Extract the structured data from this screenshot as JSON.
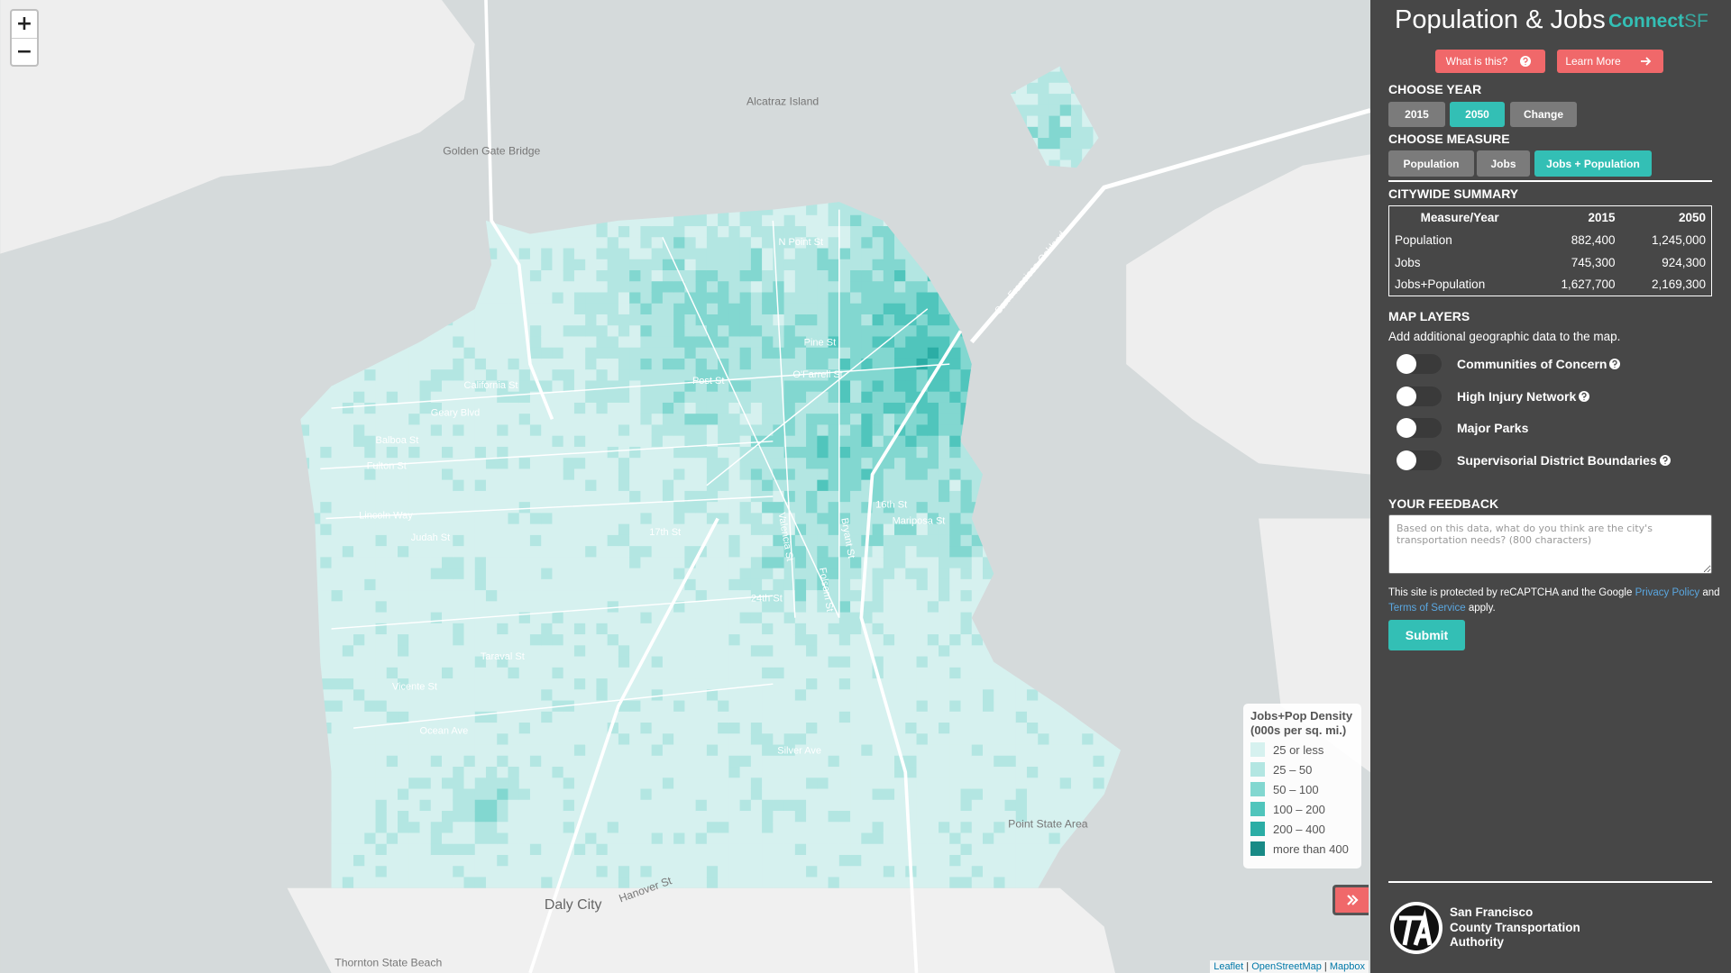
{
  "header": {
    "title": "Population & Jobs",
    "brand_a": "Connect",
    "brand_b": "SF",
    "what_is_this": "What is this?",
    "learn_more": "Learn More"
  },
  "map": {
    "zoom_in": "+",
    "zoom_out": "−",
    "labels": [
      "Alcatraz Island",
      "Golden Gate Bridge",
      "N Point St",
      "California St",
      "Geary Blvd",
      "Balboa St",
      "Fulton St",
      "Lincoln Way",
      "Judah St",
      "Taraval St",
      "Vicente St",
      "Ocean Ave",
      "Silver Ave",
      "Post St",
      "O'Farrell St",
      "Pine St",
      "16th St",
      "17th St",
      "24th St",
      "Mariposa St",
      "Valencia St",
      "Folsom St",
      "Bryant St",
      "Daly City",
      "Hanover St",
      "Thornton State Beach",
      "Point State Area",
      "San Francisco-Oakland"
    ],
    "legend": {
      "title_1": "Jobs+Pop Density",
      "title_2": "(000s per sq. mi.)",
      "items": [
        {
          "label": "25 or less",
          "color": "#d6f1ef"
        },
        {
          "label": "25 – 50",
          "color": "#b3e6e2"
        },
        {
          "label": "50 – 100",
          "color": "#82d7d0"
        },
        {
          "label": "100 – 200",
          "color": "#50c5bc"
        },
        {
          "label": "200 – 400",
          "color": "#2bada5"
        },
        {
          "label": "more than 400",
          "color": "#188a86"
        }
      ]
    },
    "attribution": [
      "Leaflet",
      "OpenStreetMap",
      "Mapbox"
    ]
  },
  "sidebar": {
    "year_heading": "CHOOSE YEAR",
    "years": [
      "2015",
      "2050",
      "Change"
    ],
    "measure_heading": "CHOOSE MEASURE",
    "measures": [
      "Population",
      "Jobs",
      "Jobs + Population"
    ],
    "summary_heading": "CITYWIDE SUMMARY",
    "table": {
      "header": [
        "Measure/Year",
        "2015",
        "2050"
      ],
      "rows": [
        [
          "Population",
          "882,400",
          "1,245,000"
        ],
        [
          "Jobs",
          "745,300",
          "924,300"
        ],
        [
          "Jobs+Population",
          "1,627,700",
          "2,169,300"
        ]
      ]
    },
    "layers_heading": "MAP LAYERS",
    "layers_sub": "Add additional geographic data to the map.",
    "layers": [
      "Communities of Concern",
      "High Injury Network",
      "Major Parks",
      "Supervisorial District Boundaries"
    ],
    "feedback_heading": "YOUR FEEDBACK",
    "feedback_placeholder": "Based on this data, what do you think are the city's transportation needs? (800 characters)",
    "recaptcha": [
      "This site is protected by reCAPTCHA and the Google",
      "Privacy Policy",
      "and",
      "Terms of Service",
      "apply."
    ],
    "submit": "Submit",
    "agency": [
      "San Francisco",
      "County Transportation",
      "Authority"
    ]
  }
}
